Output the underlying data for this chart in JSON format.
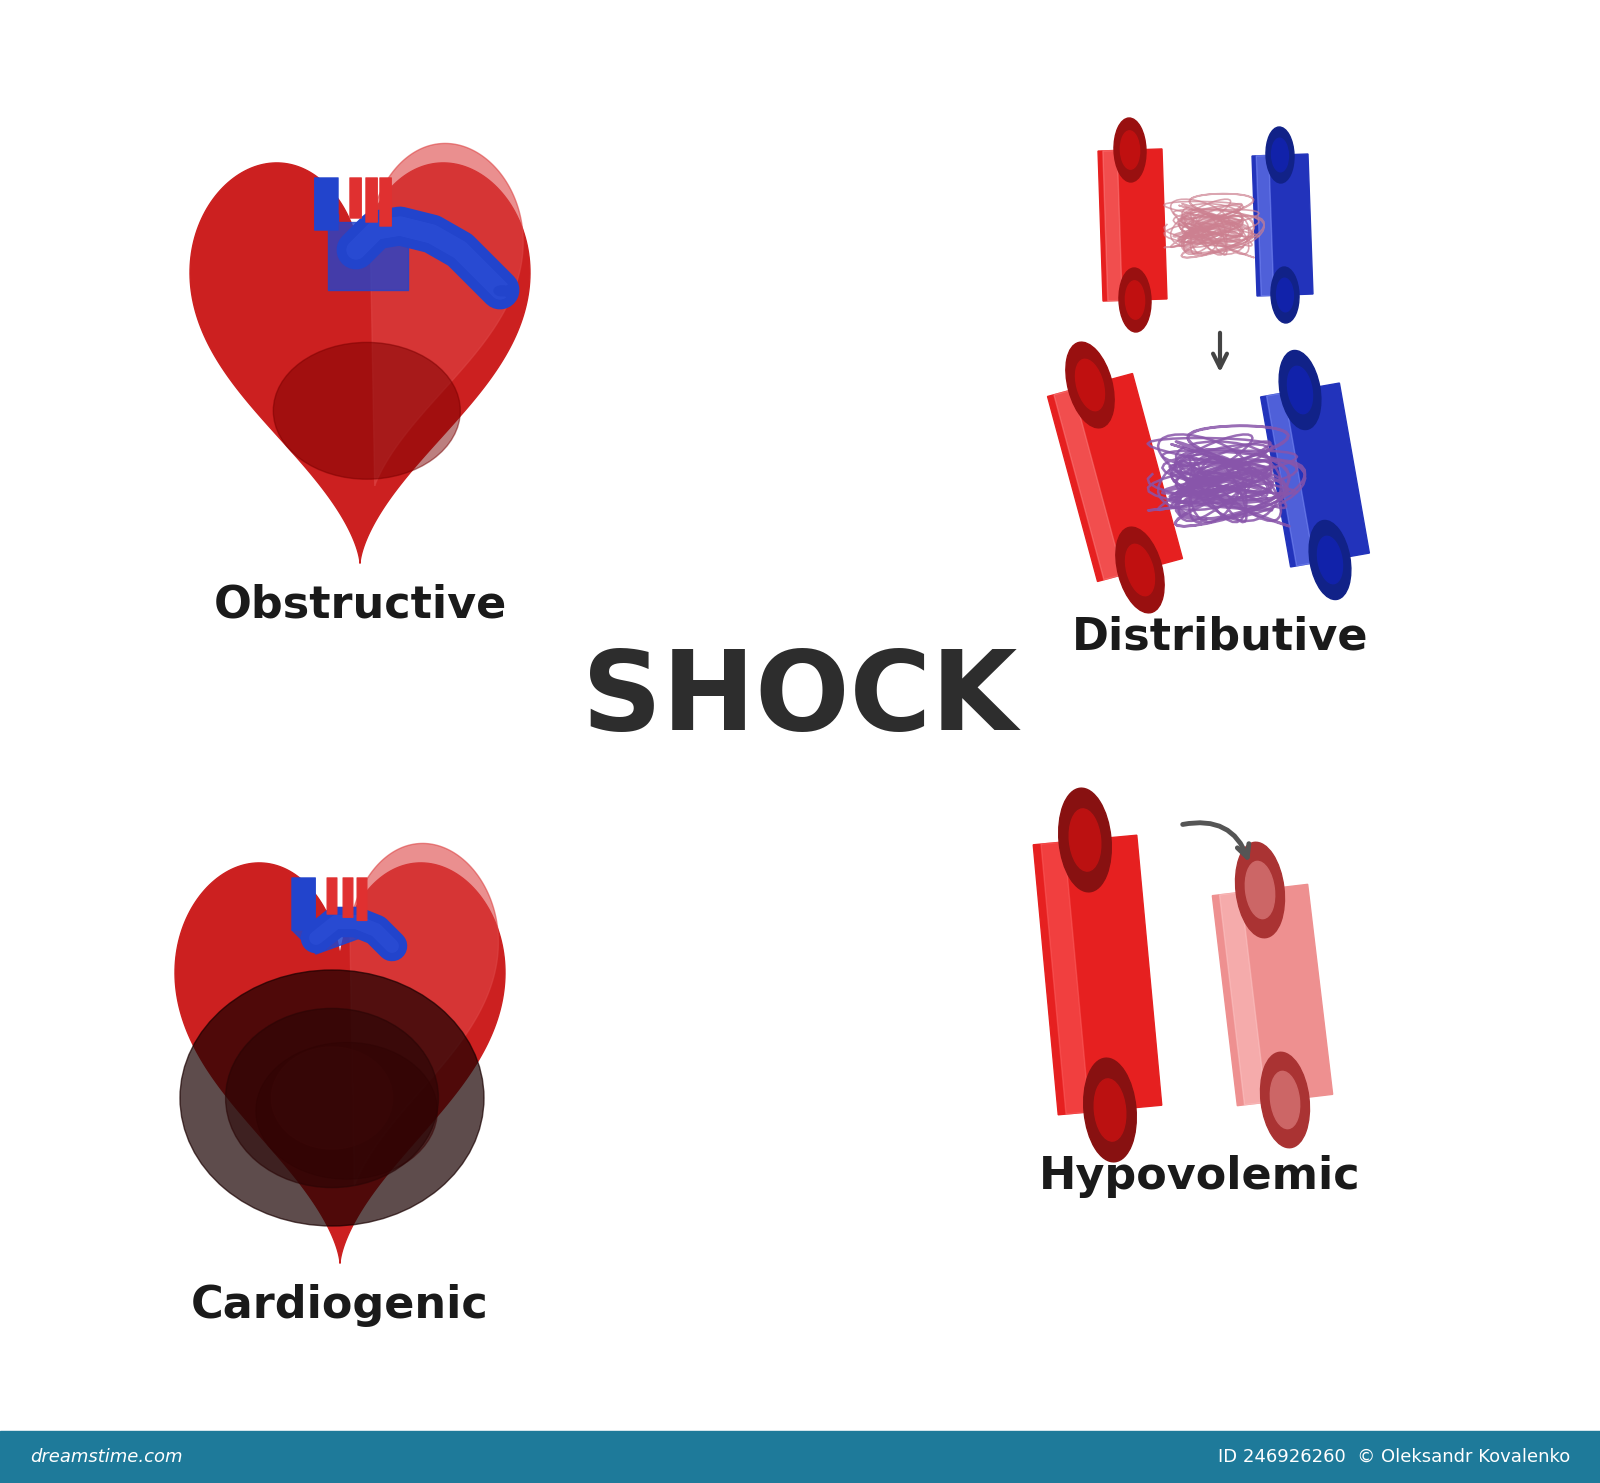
{
  "title": "SHOCK",
  "title_fontsize": 80,
  "title_color": "#2d2d2d",
  "title_fontweight": "black",
  "labels": [
    "Obstructive",
    "Distributive",
    "Cardiogenic",
    "Hypovolemic"
  ],
  "label_fontsize": 32,
  "label_color": "#1a1a1a",
  "background_color": "#ffffff",
  "heart_red": "#cc2020",
  "heart_red2": "#e03030",
  "heart_red3": "#dd4444",
  "heart_red_light": "#e86060",
  "heart_dark": "#7a0000",
  "heart_shadow": "#3a0a0a",
  "heart_blue": "#2244cc",
  "heart_blue2": "#3355dd",
  "vessel_red": "#e62020",
  "vessel_red2": "#dd3333",
  "vessel_red_light": "#f07070",
  "vessel_pink": "#ee9090",
  "vessel_pink2": "#ffbbbb",
  "vessel_pink_dark": "#cc6060",
  "vessel_pink_inner": "#aa3030",
  "vessel_blue": "#2233bb",
  "vessel_blue2": "#3344cc",
  "vessel_blue_light": "#6677ee",
  "network_pink": "#cc8090",
  "network_purple": "#8855aa",
  "arrow_color": "#444444",
  "footer_bg": "#1e7a9a",
  "footer_text1": "dreamstime.com",
  "footer_text2": "ID 246926260  © Oleksandr Kovalenko",
  "footer_fontsize": 13
}
